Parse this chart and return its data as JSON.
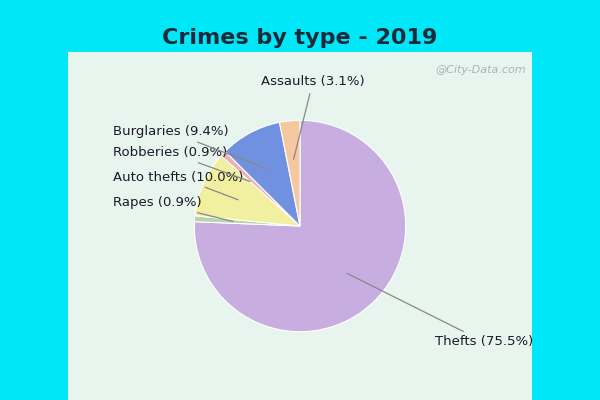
{
  "title": "Crimes by type - 2019",
  "slices": [
    {
      "label": "Thefts",
      "pct": 75.5,
      "color": "#c8aee0",
      "label_text": "Thefts (75.5%)"
    },
    {
      "label": "Rapes",
      "pct": 0.9,
      "color": "#b8d4a8",
      "label_text": "Rapes (0.9%)"
    },
    {
      "label": "Auto thefts",
      "pct": 10.0,
      "color": "#f0f0a0",
      "label_text": "Auto thefts (10.0%)"
    },
    {
      "label": "Robberies",
      "pct": 0.9,
      "color": "#f0b0b8",
      "label_text": "Robberies (0.9%)"
    },
    {
      "label": "Burglaries",
      "pct": 9.4,
      "color": "#7090e0",
      "label_text": "Burglaries (9.4%)"
    },
    {
      "label": "Assaults",
      "pct": 3.1,
      "color": "#f5c8a0",
      "label_text": "Assaults (3.1%)"
    }
  ],
  "startangle": 90,
  "background_cyan": "#00e8f8",
  "background_inner": "#e8f5ee",
  "title_color": "#1a2a3a",
  "title_fontsize": 16,
  "label_fontsize": 9.5,
  "label_color": "#1a1a2a",
  "watermark": "@City-Data.com",
  "watermark_color": "#a0b8c0"
}
